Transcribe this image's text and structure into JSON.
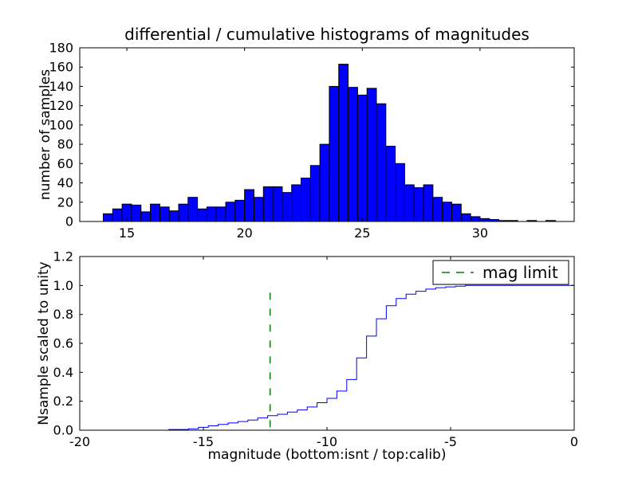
{
  "figure": {
    "background": "#ffffff",
    "frame_color": "#000000"
  },
  "chart_data": [
    {
      "type": "bar",
      "role": "differential-histogram",
      "title": "differential / cumulative histograms of magnitudes",
      "xlabel": "",
      "ylabel": "number of samples",
      "xlim": [
        13,
        34
      ],
      "ylim": [
        0,
        180
      ],
      "xticks": [
        15,
        20,
        25,
        30
      ],
      "yticks": [
        0,
        20,
        40,
        60,
        80,
        100,
        120,
        140,
        160,
        180
      ],
      "grid": false,
      "bar_color": "#0000ff",
      "bar_edge_color": "#000000",
      "bin_start": 14.0,
      "bin_width": 0.4,
      "values": [
        8,
        13,
        18,
        17,
        10,
        18,
        15,
        11,
        18,
        25,
        13,
        15,
        15,
        20,
        22,
        33,
        25,
        36,
        36,
        30,
        38,
        45,
        58,
        80,
        140,
        163,
        139,
        131,
        138,
        122,
        78,
        60,
        38,
        35,
        38,
        25,
        20,
        18,
        8,
        5,
        3,
        2,
        1,
        1,
        0,
        1,
        0,
        1
      ]
    },
    {
      "type": "line",
      "role": "cumulative-histogram",
      "title": "",
      "xlabel": "magnitude (bottom:isnt / top:calib)",
      "ylabel": "Nsample scaled to unity",
      "xlim": [
        -20,
        0
      ],
      "ylim": [
        0,
        1.2
      ],
      "xticks": [
        -20,
        -15,
        -10,
        -5,
        0
      ],
      "yticks": [
        "0.0",
        "0.2",
        "0.4",
        "0.6",
        "0.8",
        "1.0",
        "1.2"
      ],
      "grid": false,
      "line_color": "#0000ff",
      "steps": [
        [
          -16.4,
          0.005
        ],
        [
          -15.6,
          0.01
        ],
        [
          -15.2,
          0.02
        ],
        [
          -14.8,
          0.03
        ],
        [
          -14.4,
          0.04
        ],
        [
          -14.0,
          0.05
        ],
        [
          -13.6,
          0.06
        ],
        [
          -13.2,
          0.07
        ],
        [
          -12.8,
          0.085
        ],
        [
          -12.4,
          0.1
        ],
        [
          -12.0,
          0.11
        ],
        [
          -11.6,
          0.125
        ],
        [
          -11.2,
          0.14
        ],
        [
          -10.8,
          0.16
        ],
        [
          -10.4,
          0.19
        ],
        [
          -10.0,
          0.22
        ],
        [
          -9.6,
          0.27
        ],
        [
          -9.2,
          0.35
        ],
        [
          -8.8,
          0.5
        ],
        [
          -8.4,
          0.65
        ],
        [
          -8.0,
          0.77
        ],
        [
          -7.6,
          0.86
        ],
        [
          -7.2,
          0.91
        ],
        [
          -6.8,
          0.94
        ],
        [
          -6.4,
          0.96
        ],
        [
          -6.0,
          0.975
        ],
        [
          -5.6,
          0.985
        ],
        [
          -5.2,
          0.99
        ],
        [
          -4.8,
          0.995
        ],
        [
          -4.4,
          1.0
        ]
      ],
      "mag_limit": {
        "x": -12.3,
        "y_start": 0.02,
        "y_end": 0.96,
        "color": "#008000",
        "style": "dashed"
      },
      "legend": {
        "label": "mag limit",
        "position": "upper right",
        "line_color": "#008000"
      }
    }
  ]
}
